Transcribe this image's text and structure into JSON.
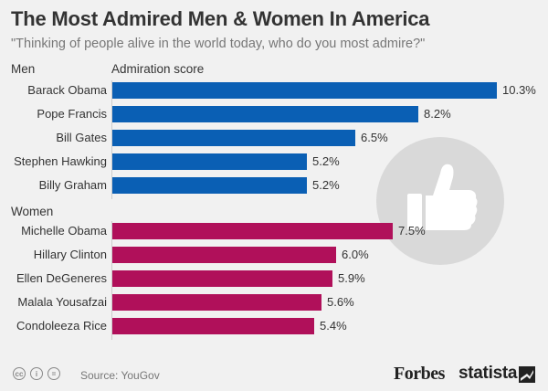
{
  "header": {
    "title": "The Most Admired Men & Women In America",
    "subtitle": "\"Thinking of people alive in the world today, who do you most admire?\""
  },
  "footer": {
    "source": "Source: YouGov",
    "brand_forbes": "Forbes",
    "brand_statista": "statista",
    "license_icons": [
      "cc-icon",
      "attribution-icon",
      "no-derivatives-icon"
    ]
  },
  "colors": {
    "men": "#0a5fb4",
    "women": "#b0105a",
    "background": "#f1f1f1",
    "thumb_circle": "#d9d9d9"
  },
  "decor": {
    "icon": "thumbs-up-icon"
  },
  "chart_data": {
    "type": "bar",
    "orientation": "horizontal",
    "title": "The Most Admired Men & Women In America",
    "subtitle": "\"Thinking of people alive in the world today, who do you most admire?\"",
    "ylabel": "Admiration score",
    "unit": "%",
    "xlim": [
      0,
      10.3
    ],
    "grid": false,
    "groups": [
      {
        "name": "Men",
        "color": "#0a5fb4",
        "categories": [
          "Barack Obama",
          "Pope Francis",
          "Bill Gates",
          "Stephen Hawking",
          "Billy Graham"
        ],
        "values": [
          10.3,
          8.2,
          6.5,
          5.2,
          5.2
        ],
        "labels": [
          "10.3%",
          "8.2%",
          "6.5%",
          "5.2%",
          "5.2%"
        ]
      },
      {
        "name": "Women",
        "color": "#b0105a",
        "categories": [
          "Michelle Obama",
          "Hillary Clinton",
          "Ellen DeGeneres",
          "Malala Yousafzai",
          "Condoleeza Rice"
        ],
        "values": [
          7.5,
          6.0,
          5.9,
          5.6,
          5.4
        ],
        "labels": [
          "7.5%",
          "6.0%",
          "5.9%",
          "5.6%",
          "5.4%"
        ]
      }
    ]
  }
}
